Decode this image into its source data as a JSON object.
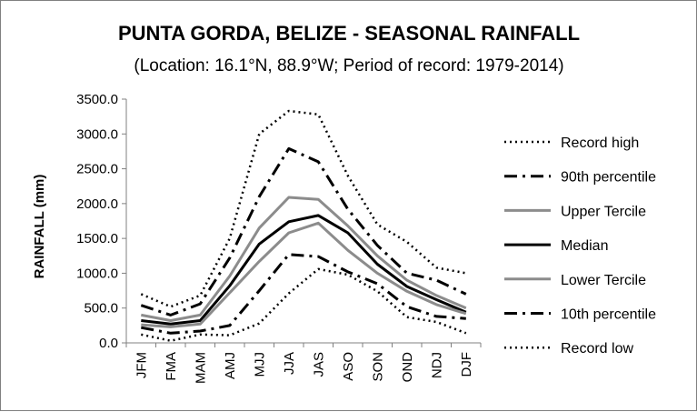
{
  "chart_data": {
    "type": "line",
    "title": "PUNTA GORDA, BELIZE - SEASONAL RAINFALL",
    "subtitle": "(Location: 16.1°N, 88.9°W; Period of record: 1979-2014)",
    "ylabel": "RAINFALL (mm)",
    "xlabel": "",
    "ylim": [
      0,
      3500
    ],
    "y_ticks": [
      "0.0",
      "500.0",
      "1000.0",
      "1500.0",
      "2000.0",
      "2500.0",
      "3000.0",
      "3500.0"
    ],
    "categories": [
      "JFM",
      "FMA",
      "MAM",
      "AMJ",
      "MJJ",
      "JJA",
      "JAS",
      "ASO",
      "SON",
      "OND",
      "NDJ",
      "DJF"
    ],
    "grid": false,
    "legend_position": "right",
    "series": [
      {
        "name": "Record high",
        "color": "#000000",
        "values": [
          700,
          520,
          680,
          1500,
          3000,
          3330,
          3280,
          2400,
          1700,
          1450,
          1080,
          1000
        ]
      },
      {
        "name": "90th percentile",
        "color": "#000000",
        "values": [
          540,
          400,
          560,
          1220,
          2100,
          2790,
          2600,
          1920,
          1400,
          1000,
          900,
          700
        ]
      },
      {
        "name": "Upper Tercile",
        "color": "#808080",
        "values": [
          400,
          320,
          400,
          960,
          1650,
          2090,
          2060,
          1680,
          1250,
          900,
          680,
          500
        ]
      },
      {
        "name": "Median",
        "color": "#000000",
        "values": [
          320,
          270,
          320,
          820,
          1420,
          1740,
          1830,
          1580,
          1130,
          810,
          620,
          440
        ]
      },
      {
        "name": "Lower Tercile",
        "color": "#808080",
        "values": [
          260,
          230,
          270,
          720,
          1170,
          1580,
          1720,
          1330,
          1000,
          740,
          550,
          420
        ]
      },
      {
        "name": "10th percentile",
        "color": "#000000",
        "values": [
          220,
          140,
          170,
          250,
          750,
          1270,
          1240,
          1020,
          850,
          520,
          380,
          350
        ]
      },
      {
        "name": "Record low",
        "color": "#000000",
        "values": [
          120,
          30,
          120,
          110,
          280,
          710,
          1060,
          980,
          740,
          370,
          300,
          140
        ]
      }
    ]
  }
}
